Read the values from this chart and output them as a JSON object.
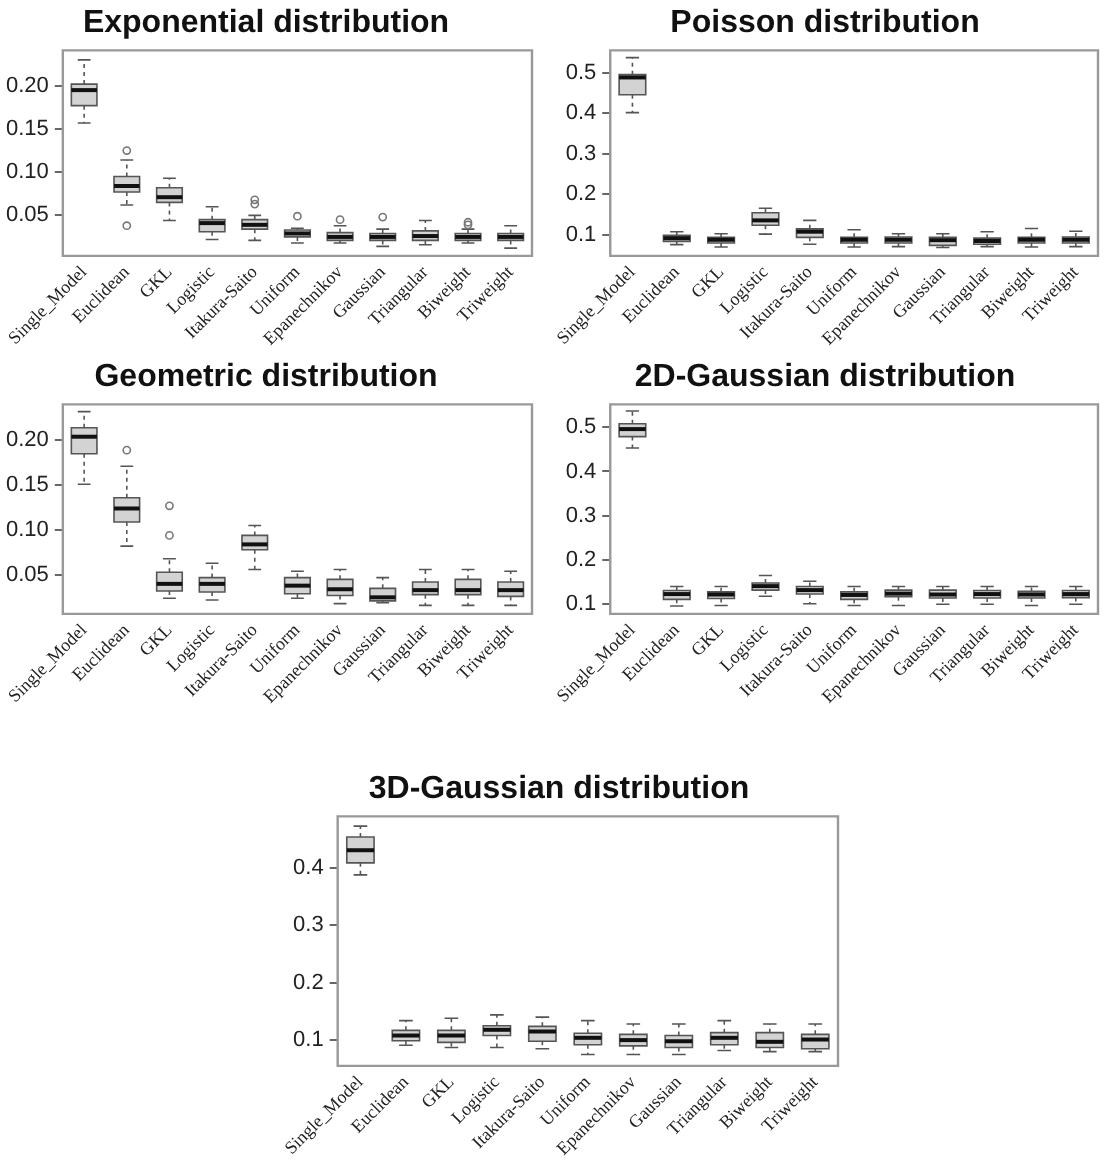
{
  "chart_data": [
    {
      "type": "box",
      "title": "Exponential distribution",
      "color": "#d3d3d3",
      "grid": false,
      "categories": [
        "Single_Model",
        "Euclidean",
        "GKL",
        "Logistic",
        "Itakura-Saito",
        "Uniform",
        "Epanechnikov",
        "Gaussian",
        "Triangular",
        "Biweight",
        "Triweight"
      ],
      "ylim": [
        0.003,
        0.241
      ],
      "yticks": [
        {
          "value": 0.05,
          "label": "0.05"
        },
        {
          "value": 0.1,
          "label": "0.10"
        },
        {
          "value": 0.15,
          "label": "0.15"
        },
        {
          "value": 0.2,
          "label": "0.20"
        }
      ],
      "boxes": [
        {
          "low": 0.157,
          "q1": 0.177,
          "median": 0.195,
          "q3": 0.202,
          "high": 0.23
        },
        {
          "low": 0.062,
          "q1": 0.077,
          "median": 0.084,
          "q3": 0.095,
          "high": 0.114,
          "outliers": [
            0.125,
            0.038
          ]
        },
        {
          "low": 0.044,
          "q1": 0.065,
          "median": 0.071,
          "q3": 0.082,
          "high": 0.093
        },
        {
          "low": 0.022,
          "q1": 0.031,
          "median": 0.041,
          "q3": 0.045,
          "high": 0.06
        },
        {
          "low": 0.021,
          "q1": 0.034,
          "median": 0.039,
          "q3": 0.045,
          "high": 0.05,
          "outliers": [
            0.068,
            0.063
          ]
        },
        {
          "low": 0.018,
          "q1": 0.025,
          "median": 0.029,
          "q3": 0.033,
          "high": 0.035,
          "outliers": [
            0.049
          ]
        },
        {
          "low": 0.018,
          "q1": 0.021,
          "median": 0.025,
          "q3": 0.03,
          "high": 0.038,
          "outliers": [
            0.045
          ]
        },
        {
          "low": 0.014,
          "q1": 0.021,
          "median": 0.025,
          "q3": 0.029,
          "high": 0.034,
          "outliers": [
            0.048
          ]
        },
        {
          "low": 0.016,
          "q1": 0.021,
          "median": 0.026,
          "q3": 0.032,
          "high": 0.044
        },
        {
          "low": 0.018,
          "q1": 0.021,
          "median": 0.025,
          "q3": 0.029,
          "high": 0.034,
          "outliers": [
            0.042,
            0.039
          ]
        },
        {
          "low": 0.012,
          "q1": 0.021,
          "median": 0.025,
          "q3": 0.029,
          "high": 0.038
        }
      ]
    },
    {
      "type": "box",
      "title": "Poisson distribution",
      "color": "#d3d3d3",
      "grid": false,
      "categories": [
        "Single_Model",
        "Euclidean",
        "GKL",
        "Logistic",
        "Itakura-Saito",
        "Uniform",
        "Epanechnikov",
        "Gaussian",
        "Triangular",
        "Biweight",
        "Triweight"
      ],
      "ylim": [
        0.047,
        0.556
      ],
      "yticks": [
        0.1,
        0.2,
        0.3,
        0.4,
        0.5
      ],
      "boxes": [
        {
          "low": 0.402,
          "q1": 0.446,
          "median": 0.489,
          "q3": 0.496,
          "high": 0.538
        },
        {
          "low": 0.075,
          "q1": 0.083,
          "median": 0.091,
          "q3": 0.098,
          "high": 0.107
        },
        {
          "low": 0.069,
          "q1": 0.079,
          "median": 0.087,
          "q3": 0.093,
          "high": 0.102
        },
        {
          "low": 0.101,
          "q1": 0.123,
          "median": 0.135,
          "q3": 0.154,
          "high": 0.165
        },
        {
          "low": 0.076,
          "q1": 0.093,
          "median": 0.107,
          "q3": 0.114,
          "high": 0.135
        },
        {
          "low": 0.069,
          "q1": 0.079,
          "median": 0.087,
          "q3": 0.093,
          "high": 0.112
        },
        {
          "low": 0.07,
          "q1": 0.079,
          "median": 0.087,
          "q3": 0.094,
          "high": 0.102
        },
        {
          "low": 0.068,
          "q1": 0.073,
          "median": 0.086,
          "q3": 0.093,
          "high": 0.102
        },
        {
          "low": 0.07,
          "q1": 0.076,
          "median": 0.084,
          "q3": 0.091,
          "high": 0.107
        },
        {
          "low": 0.069,
          "q1": 0.079,
          "median": 0.087,
          "q3": 0.093,
          "high": 0.115
        },
        {
          "low": 0.07,
          "q1": 0.079,
          "median": 0.087,
          "q3": 0.094,
          "high": 0.108
        }
      ]
    },
    {
      "type": "box",
      "title": "Geometric distribution",
      "color": "#d3d3d3",
      "grid": false,
      "categories": [
        "Single_Model",
        "Euclidean",
        "GKL",
        "Logistic",
        "Itakura-Saito",
        "Uniform",
        "Epanechnikov",
        "Gaussian",
        "Triangular",
        "Biweight",
        "Triweight"
      ],
      "ylim": [
        0.0065,
        0.24
      ],
      "yticks": [
        {
          "value": 0.05,
          "label": "0.05"
        },
        {
          "value": 0.1,
          "label": "0.10"
        },
        {
          "value": 0.15,
          "label": "0.15"
        },
        {
          "value": 0.2,
          "label": "0.20"
        }
      ],
      "boxes": [
        {
          "low": 0.151,
          "q1": 0.185,
          "median": 0.204,
          "q3": 0.214,
          "high": 0.232
        },
        {
          "low": 0.082,
          "q1": 0.109,
          "median": 0.124,
          "q3": 0.136,
          "high": 0.171,
          "outliers": [
            0.189
          ]
        },
        {
          "low": 0.024,
          "q1": 0.032,
          "median": 0.04,
          "q3": 0.053,
          "high": 0.068,
          "outliers": [
            0.127,
            0.094
          ]
        },
        {
          "low": 0.022,
          "q1": 0.031,
          "median": 0.04,
          "q3": 0.047,
          "high": 0.063
        },
        {
          "low": 0.056,
          "q1": 0.078,
          "median": 0.084,
          "q3": 0.094,
          "high": 0.105
        },
        {
          "low": 0.024,
          "q1": 0.029,
          "median": 0.038,
          "q3": 0.047,
          "high": 0.054
        },
        {
          "low": 0.018,
          "q1": 0.027,
          "median": 0.034,
          "q3": 0.045,
          "high": 0.056
        },
        {
          "low": 0.019,
          "q1": 0.021,
          "median": 0.025,
          "q3": 0.035,
          "high": 0.047
        },
        {
          "low": 0.016,
          "q1": 0.028,
          "median": 0.033,
          "q3": 0.042,
          "high": 0.056
        },
        {
          "low": 0.016,
          "q1": 0.028,
          "median": 0.033,
          "q3": 0.045,
          "high": 0.056
        },
        {
          "low": 0.016,
          "q1": 0.026,
          "median": 0.033,
          "q3": 0.042,
          "high": 0.054
        }
      ]
    },
    {
      "type": "box",
      "title": "2D-Gaussian distribution",
      "color": "#d3d3d3",
      "grid": false,
      "categories": [
        "Single_Model",
        "Euclidean",
        "GKL",
        "Logistic",
        "Itakura-Saito",
        "Uniform",
        "Epanechnikov",
        "Gaussian",
        "Triangular",
        "Biweight",
        "Triweight"
      ],
      "ylim": [
        0.077,
        0.552
      ],
      "yticks": [
        0.1,
        0.2,
        0.3,
        0.4,
        0.5
      ],
      "boxes": [
        {
          "low": 0.453,
          "q1": 0.479,
          "median": 0.496,
          "q3": 0.508,
          "high": 0.537
        },
        {
          "low": 0.095,
          "q1": 0.11,
          "median": 0.122,
          "q3": 0.13,
          "high": 0.139
        },
        {
          "low": 0.096,
          "q1": 0.112,
          "median": 0.121,
          "q3": 0.127,
          "high": 0.139
        },
        {
          "low": 0.117,
          "q1": 0.131,
          "median": 0.14,
          "q3": 0.147,
          "high": 0.164
        },
        {
          "low": 0.1,
          "q1": 0.122,
          "median": 0.131,
          "q3": 0.139,
          "high": 0.151
        },
        {
          "low": 0.096,
          "q1": 0.11,
          "median": 0.12,
          "q3": 0.127,
          "high": 0.139
        },
        {
          "low": 0.096,
          "q1": 0.116,
          "median": 0.123,
          "q3": 0.131,
          "high": 0.139
        },
        {
          "low": 0.099,
          "q1": 0.113,
          "median": 0.121,
          "q3": 0.131,
          "high": 0.139
        },
        {
          "low": 0.099,
          "q1": 0.113,
          "median": 0.122,
          "q3": 0.13,
          "high": 0.139
        },
        {
          "low": 0.096,
          "q1": 0.113,
          "median": 0.121,
          "q3": 0.128,
          "high": 0.139
        },
        {
          "low": 0.099,
          "q1": 0.114,
          "median": 0.122,
          "q3": 0.13,
          "high": 0.139
        }
      ]
    },
    {
      "type": "box",
      "title": "3D-Gaussian distribution",
      "color": "#d3d3d3",
      "grid": false,
      "categories": [
        "Single_Model",
        "Euclidean",
        "GKL",
        "Logistic",
        "Itakura-Saito",
        "Uniform",
        "Epanechnikov",
        "Gaussian",
        "Triangular",
        "Biweight",
        "Triweight"
      ],
      "ylim": [
        0.055,
        0.49
      ],
      "yticks": [
        0.1,
        0.2,
        0.3,
        0.4
      ],
      "boxes": [
        {
          "low": 0.388,
          "q1": 0.409,
          "median": 0.431,
          "q3": 0.454,
          "high": 0.473
        },
        {
          "low": 0.091,
          "q1": 0.099,
          "median": 0.108,
          "q3": 0.117,
          "high": 0.134
        },
        {
          "low": 0.087,
          "q1": 0.096,
          "median": 0.108,
          "q3": 0.117,
          "high": 0.138
        },
        {
          "low": 0.087,
          "q1": 0.108,
          "median": 0.118,
          "q3": 0.125,
          "high": 0.144
        },
        {
          "low": 0.085,
          "q1": 0.098,
          "median": 0.115,
          "q3": 0.124,
          "high": 0.14
        },
        {
          "low": 0.075,
          "q1": 0.092,
          "median": 0.104,
          "q3": 0.112,
          "high": 0.134
        },
        {
          "low": 0.075,
          "q1": 0.09,
          "median": 0.1,
          "q3": 0.11,
          "high": 0.128
        },
        {
          "low": 0.075,
          "q1": 0.087,
          "median": 0.098,
          "q3": 0.108,
          "high": 0.128
        },
        {
          "low": 0.082,
          "q1": 0.092,
          "median": 0.104,
          "q3": 0.113,
          "high": 0.134
        },
        {
          "low": 0.08,
          "q1": 0.087,
          "median": 0.097,
          "q3": 0.113,
          "high": 0.128
        },
        {
          "low": 0.08,
          "q1": 0.085,
          "median": 0.101,
          "q3": 0.11,
          "high": 0.128
        }
      ]
    }
  ]
}
